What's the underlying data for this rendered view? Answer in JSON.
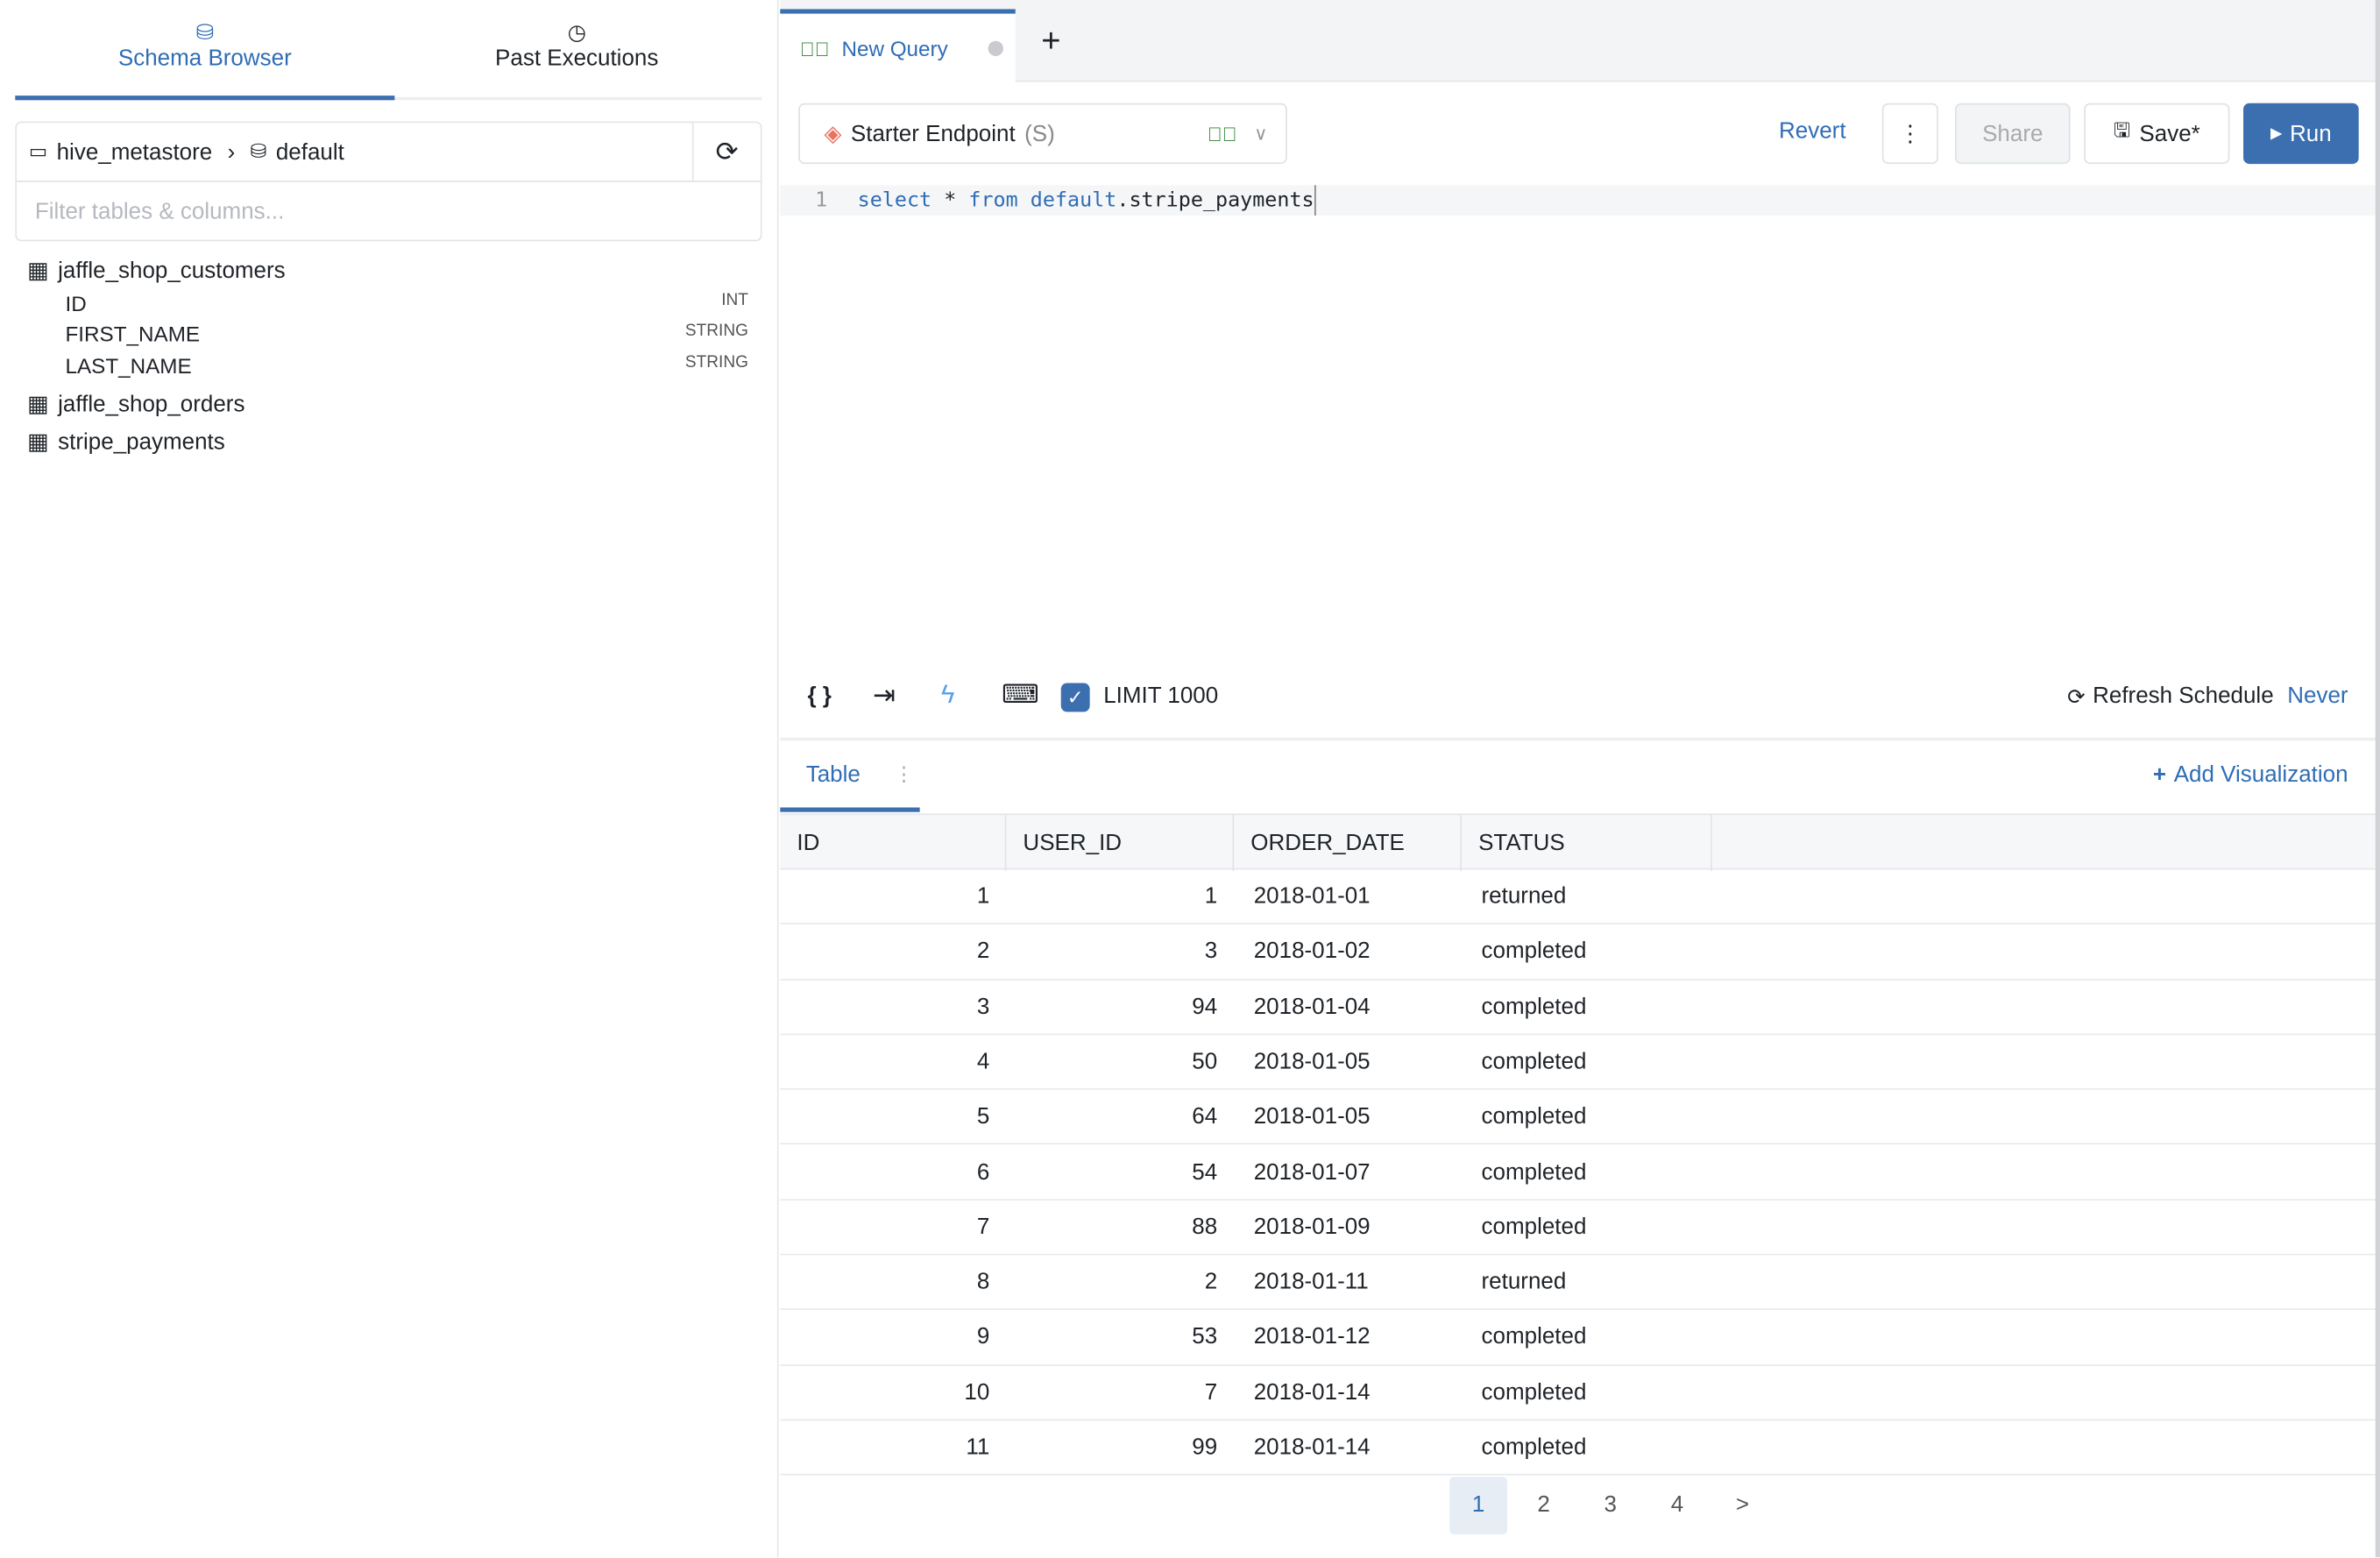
{
  "sidebar": {
    "tabs": [
      {
        "label": "Schema Browser",
        "icon": "database-icon",
        "active": true
      },
      {
        "label": "Past Executions",
        "icon": "history-icon",
        "active": false
      }
    ],
    "breadcrumb": {
      "catalog": "hive_metastore",
      "schema": "default"
    },
    "filter_placeholder": "Filter tables & columns...",
    "tables": [
      {
        "name": "jaffle_shop_customers",
        "expanded": true,
        "columns": [
          {
            "name": "ID",
            "type": "INT"
          },
          {
            "name": "FIRST_NAME",
            "type": "STRING"
          },
          {
            "name": "LAST_NAME",
            "type": "STRING"
          }
        ]
      },
      {
        "name": "jaffle_shop_orders"
      },
      {
        "name": "stripe_payments"
      }
    ]
  },
  "query_tabs": [
    {
      "label": "New Query",
      "status": "success"
    }
  ],
  "toolbar": {
    "endpoint": "Starter Endpoint",
    "endpoint_size": "(S)",
    "revert": "Revert",
    "share": "Share",
    "save": "Save*",
    "run": "Run"
  },
  "editor": {
    "line_number": "1",
    "kw1": "select",
    "star": " * ",
    "kw2": "from",
    "schema": "default",
    "rest": ".stripe_payments"
  },
  "editor_tools": {
    "limit_label": "LIMIT 1000",
    "limit_checked": true,
    "refresh_label": "Refresh Schedule",
    "refresh_value": "Never"
  },
  "results": {
    "tab": "Table",
    "add_viz": "Add Visualization",
    "columns": [
      "ID",
      "USER_ID",
      "ORDER_DATE",
      "STATUS"
    ],
    "rows": [
      [
        "1",
        "1",
        "2018-01-01",
        "returned"
      ],
      [
        "2",
        "3",
        "2018-01-02",
        "completed"
      ],
      [
        "3",
        "94",
        "2018-01-04",
        "completed"
      ],
      [
        "4",
        "50",
        "2018-01-05",
        "completed"
      ],
      [
        "5",
        "64",
        "2018-01-05",
        "completed"
      ],
      [
        "6",
        "54",
        "2018-01-07",
        "completed"
      ],
      [
        "7",
        "88",
        "2018-01-09",
        "completed"
      ],
      [
        "8",
        "2",
        "2018-01-11",
        "returned"
      ],
      [
        "9",
        "53",
        "2018-01-12",
        "completed"
      ],
      [
        "10",
        "7",
        "2018-01-14",
        "completed"
      ],
      [
        "11",
        "99",
        "2018-01-14",
        "completed"
      ]
    ],
    "pages": [
      "1",
      "2",
      "3",
      "4"
    ],
    "current_page": "1",
    "next": ">"
  },
  "colors": {
    "accent": "#3b6fb0",
    "success": "#2e7d32"
  }
}
